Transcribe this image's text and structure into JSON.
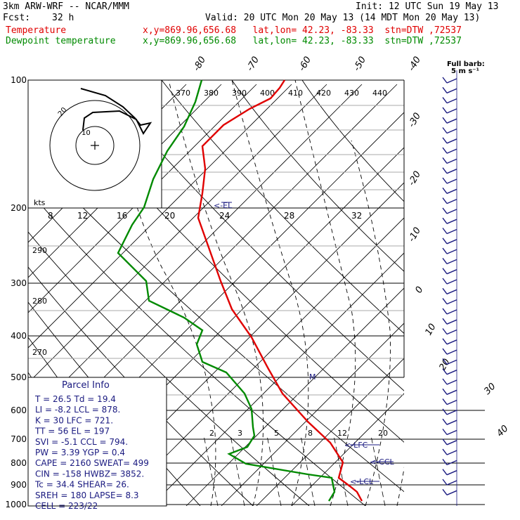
{
  "header": {
    "model": "3km ARW-WRF -- NCAR/MMM",
    "init": "Init: 12 UTC Sun 19 May 13",
    "fcst_label": "Fcst:",
    "fcst_value": "32 h",
    "valid": "Valid: 20 UTC Mon 20 May 13 (14 MDT Mon 20 May 13)",
    "temp_label": "Temperature",
    "temp_loc": "x,y=869.96,656.68   lat,lon= 42.23, -83.33  stn=DTW ,72537",
    "dew_label": "Dewpoint temperature",
    "dew_loc": "x,y=869.96,656.68   lat,lon= 42.23, -83.33  stn=DTW ,72537",
    "full_barb": "Full barb:",
    "full_barb_unit": "5 m s⁻¹"
  },
  "chart_data": {
    "type": "line",
    "title": "",
    "ylabel": "",
    "pressure_levels": [
      "100",
      "200",
      "300",
      "400",
      "500",
      "600",
      "700",
      "800",
      "900",
      "1000"
    ],
    "isotherm_labels": [
      "-80",
      "-70",
      "-60",
      "-50",
      "-40",
      "-30",
      "-20",
      "-10",
      "0",
      "10",
      "20",
      "30",
      "40"
    ],
    "theta_labels": [
      "290",
      "280",
      "270"
    ],
    "mixing_ratio_labels": [
      "2",
      "3",
      "5",
      "8",
      "12",
      "20"
    ],
    "series": [
      {
        "name": "Temperature",
        "color": "#e00000",
        "points": [
          [
            405,
            114
          ],
          [
            398,
            125
          ],
          [
            385,
            140
          ],
          [
            355,
            155
          ],
          [
            318,
            178
          ],
          [
            288,
            208
          ],
          [
            292,
            240
          ],
          [
            288,
            275
          ],
          [
            282,
            310
          ],
          [
            298,
            355
          ],
          [
            314,
            400
          ],
          [
            330,
            440
          ],
          [
            358,
            480
          ],
          [
            382,
            525
          ],
          [
            402,
            560
          ],
          [
            438,
            600
          ],
          [
            470,
            630
          ],
          [
            488,
            658
          ],
          [
            482,
            680
          ],
          [
            498,
            692
          ],
          [
            508,
            700
          ],
          [
            515,
            713
          ]
        ]
      },
      {
        "name": "Dewpoint temperature",
        "color": "#008a00",
        "points": [
          [
            287,
            114
          ],
          [
            278,
            145
          ],
          [
            262,
            180
          ],
          [
            238,
            215
          ],
          [
            218,
            255
          ],
          [
            205,
            295
          ],
          [
            188,
            320
          ],
          [
            168,
            360
          ],
          [
            208,
            400
          ],
          [
            212,
            428
          ],
          [
            262,
            452
          ],
          [
            288,
            470
          ],
          [
            280,
            490
          ],
          [
            288,
            515
          ],
          [
            322,
            530
          ],
          [
            348,
            560
          ],
          [
            358,
            582
          ],
          [
            360,
            608
          ],
          [
            362,
            620
          ],
          [
            352,
            636
          ],
          [
            326,
            646
          ],
          [
            350,
            660
          ],
          [
            438,
            675
          ],
          [
            472,
            680
          ],
          [
            476,
            700
          ],
          [
            468,
            713
          ]
        ]
      }
    ],
    "hodograph": {
      "ring_labels": [
        "10",
        "20"
      ],
      "speed_axis_label": "kts",
      "speed_ticks": [
        "8",
        "12",
        "16",
        "20",
        "24",
        "28",
        "32"
      ],
      "theta_ticks": [
        "370",
        "380",
        "390",
        "400",
        "410",
        "420",
        "430",
        "440"
      ]
    },
    "annotations": [
      "<-EL",
      "<-LFC",
      "<-CCL",
      "<-LCL",
      "M"
    ],
    "parcel_info": {
      "title": "Parcel Info",
      "rows": [
        "T   =   26.5 Td =  19.4",
        "LI  =   -8.2 LCL =  878.",
        "K   =     30 LFC =  721.",
        "TT  =     56 EL  =  197",
        "SVI =   -5.1 CCL =  794.",
        "PW  =   3.39 YGP =   0.4",
        "CAPE =  2160 SWEAT=  499",
        "CIN  =  -158 HWBZ= 3852.",
        "Tc   =  34.4 SHEAR=   26.",
        "SREH =   180 LAPSE=   8.3",
        "CELL = 223/22"
      ]
    }
  }
}
